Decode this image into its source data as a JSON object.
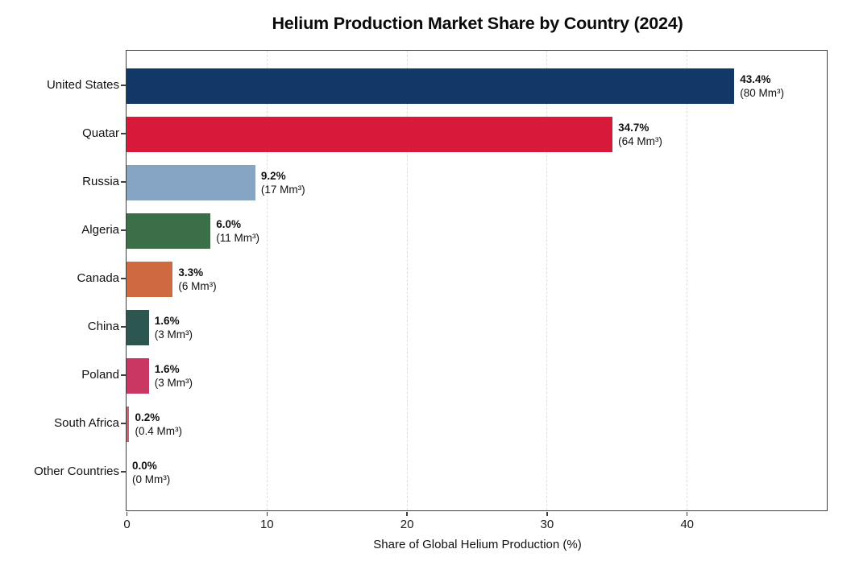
{
  "title": "Helium Production Market Share by Country (2024)",
  "chart_data": {
    "type": "bar",
    "orientation": "horizontal",
    "title": "Helium Production Market Share by Country (2024)",
    "xlabel": "Share of Global Helium Production (%)",
    "ylabel": "",
    "xlim": [
      0,
      50
    ],
    "xticks": [
      0,
      10,
      20,
      30,
      40
    ],
    "grid": "vertical-dashed-behind-bars",
    "legend": "none",
    "categories": [
      "United States",
      "Quatar",
      "Russia",
      "Algeria",
      "Canada",
      "China",
      "Poland",
      "South Africa",
      "Other Countries"
    ],
    "values": [
      43.4,
      34.7,
      9.2,
      6.0,
      3.3,
      1.6,
      1.6,
      0.2,
      0.0
    ],
    "percent_labels": [
      "43.4%",
      "34.7%",
      "9.2%",
      "6.0%",
      "3.3%",
      "1.6%",
      "1.6%",
      "0.2%",
      "0.0%"
    ],
    "volume_labels": [
      "(80 Mm³)",
      "(64 Mm³)",
      "(17 Mm³)",
      "(11 Mm³)",
      "(6 Mm³)",
      "(3 Mm³)",
      "(3 Mm³)",
      "(0.4 Mm³)",
      "(0 Mm³)"
    ],
    "bar_colors": [
      "#113866",
      "#d8193a",
      "#86a4c4",
      "#3b6f48",
      "#ce6942",
      "#2b5750",
      "#ca3763",
      "#d05f70",
      "#d05f70"
    ]
  },
  "colors": {
    "background": "#ffffff",
    "axis": "#3f3f3f",
    "grid": "#dedede",
    "text": "#111111"
  }
}
